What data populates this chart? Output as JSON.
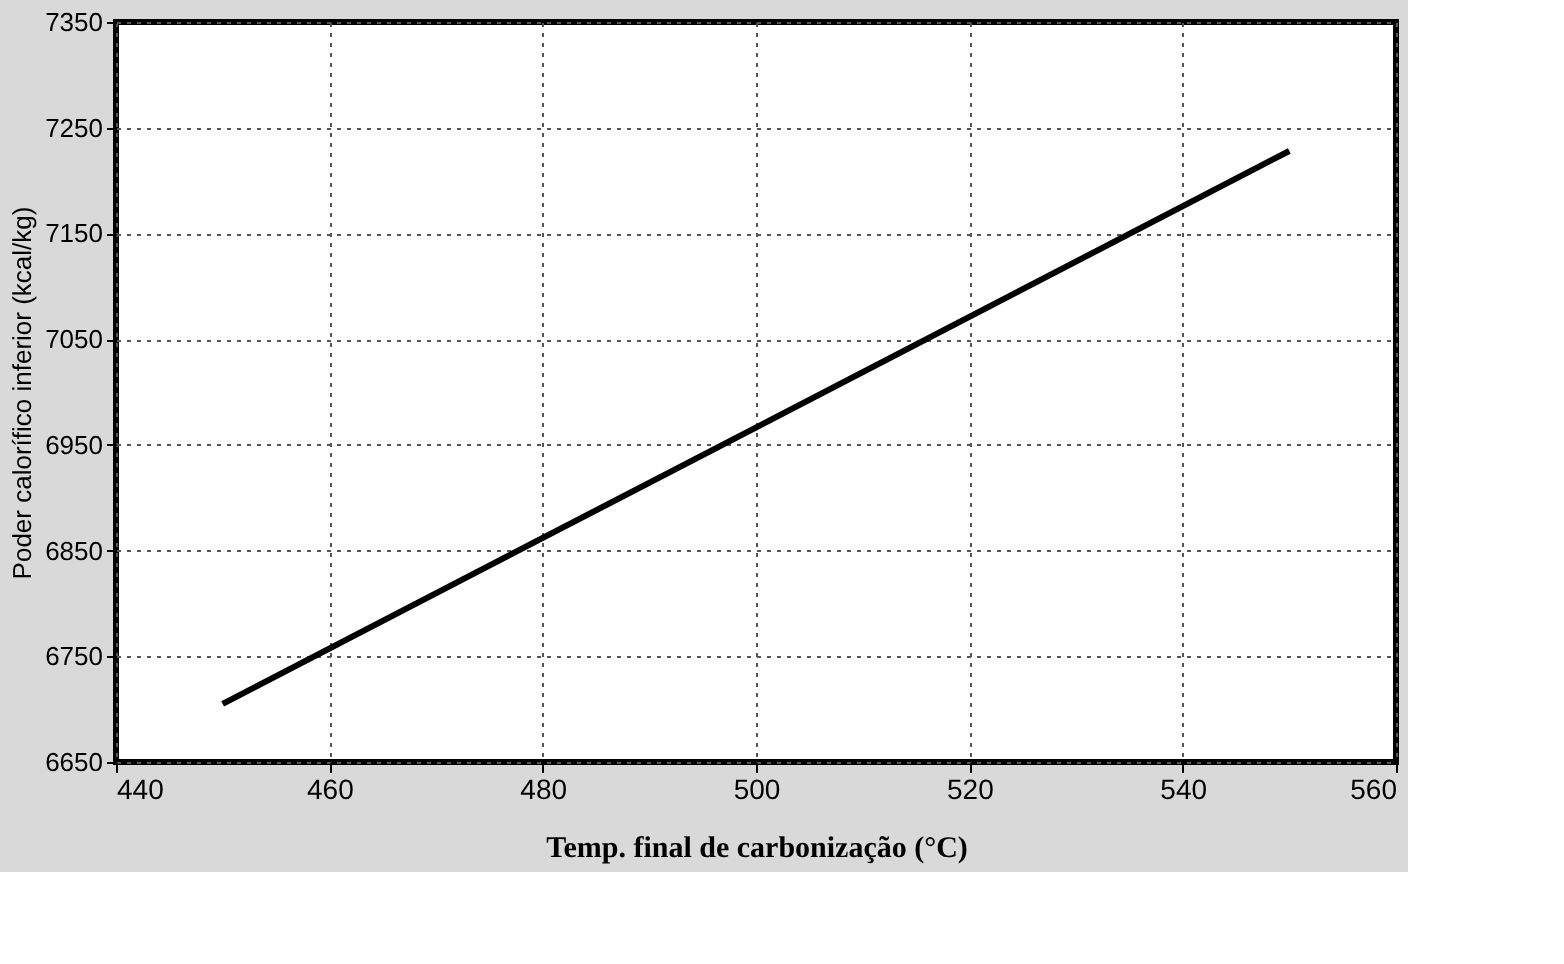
{
  "chart_data": {
    "type": "line",
    "xlabel": "Temp. final de carbonização (°C)",
    "ylabel": "Poder calorífico inferior (kcal/kg)",
    "x": [
      450,
      550
    ],
    "series": [
      {
        "color": "#000000",
        "values": [
          6705,
          7228
        ]
      }
    ],
    "xlim": [
      440,
      560
    ],
    "xticks": [
      440,
      460,
      480,
      500,
      520,
      540,
      560
    ],
    "ylim": [
      6650,
      7350
    ],
    "yticks": [
      6650,
      6750,
      6850,
      6950,
      7050,
      7150,
      7250,
      7350
    ],
    "grid": true,
    "line_style": "solid",
    "marker": "none"
  }
}
